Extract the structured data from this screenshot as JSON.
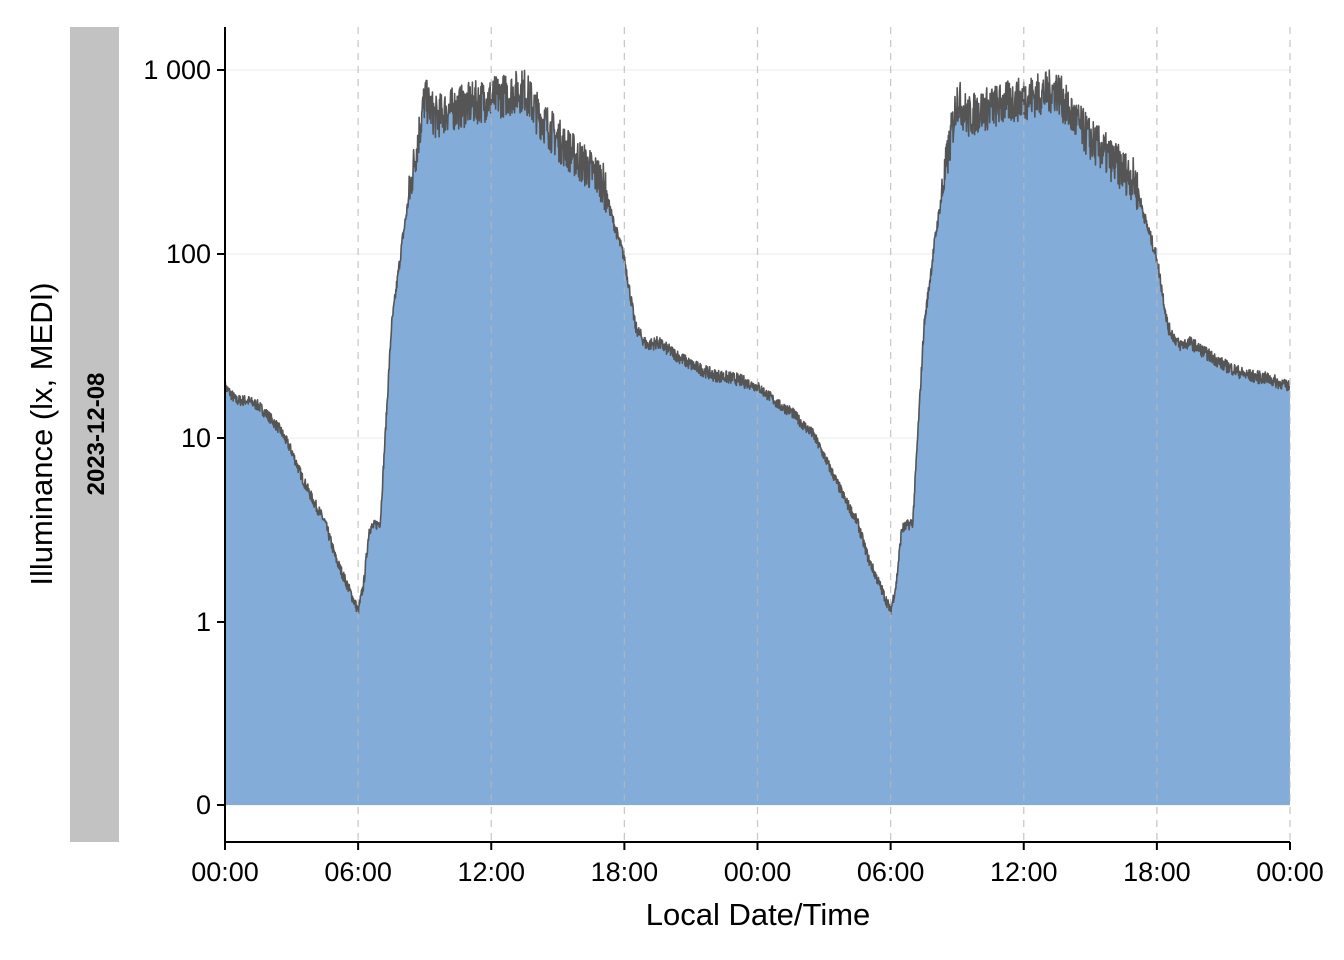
{
  "chart_data": {
    "type": "area",
    "xlabel": "Local Date/Time",
    "ylabel": "Illuminance (lx, MEDI)",
    "strip_label": "2023-12-08",
    "y_scale": "symlog",
    "y_ticks": [
      {
        "value": 0,
        "label": "0"
      },
      {
        "value": 1,
        "label": "1"
      },
      {
        "value": 10,
        "label": "10"
      },
      {
        "value": 100,
        "label": "100"
      },
      {
        "value": 1000,
        "label": "1 000"
      }
    ],
    "x_ticks": [
      "00:00",
      "06:00",
      "12:00",
      "18:00",
      "00:00",
      "06:00",
      "12:00",
      "18:00",
      "00:00"
    ],
    "xlim_hours": [
      0,
      48
    ],
    "gridlines": "vertical dashed at 6-hour ticks",
    "colors": {
      "fill": "#83acd9",
      "line": "#555555",
      "strip": "#c2c2c2",
      "grid": "#c8c8c8"
    },
    "series": [
      {
        "hours": [
          0,
          0.5,
          1,
          1.5,
          2,
          2.5,
          3,
          3.5,
          4,
          4.5,
          5,
          5.5,
          6,
          6.25,
          6.5,
          7,
          7.5,
          8,
          8.5,
          9,
          9.5,
          10,
          11,
          12,
          13,
          13.5,
          14,
          15,
          16,
          17,
          17.5,
          18,
          18.5,
          19,
          19.5,
          20,
          21,
          22,
          23,
          24,
          24.5,
          25,
          25.5,
          26,
          26.5,
          27,
          27.5,
          28,
          28.5,
          29,
          29.5,
          30,
          30.25,
          30.5,
          31,
          31.5,
          32,
          32.5,
          33,
          33.5,
          34,
          35,
          36,
          37,
          37.5,
          38,
          39,
          40,
          41,
          41.5,
          42,
          42.5,
          43,
          43.5,
          44,
          45,
          46,
          47,
          48
        ],
        "values": [
          19,
          16,
          16,
          15,
          13,
          11,
          8.5,
          6,
          4.5,
          3.5,
          2.2,
          1.6,
          1.15,
          1.6,
          3.2,
          3.5,
          40,
          120,
          300,
          700,
          550,
          600,
          650,
          700,
          750,
          780,
          600,
          420,
          320,
          250,
          150,
          95,
          40,
          32,
          33,
          30,
          25,
          22,
          21,
          19,
          17,
          15,
          14,
          12,
          10.5,
          8,
          6,
          4.5,
          3.5,
          2.2,
          1.6,
          1.15,
          1.6,
          3.2,
          3.5,
          40,
          120,
          300,
          700,
          550,
          600,
          650,
          700,
          750,
          780,
          600,
          420,
          320,
          250,
          150,
          95,
          40,
          32,
          33,
          30,
          25,
          22,
          21,
          19
        ]
      }
    ]
  }
}
